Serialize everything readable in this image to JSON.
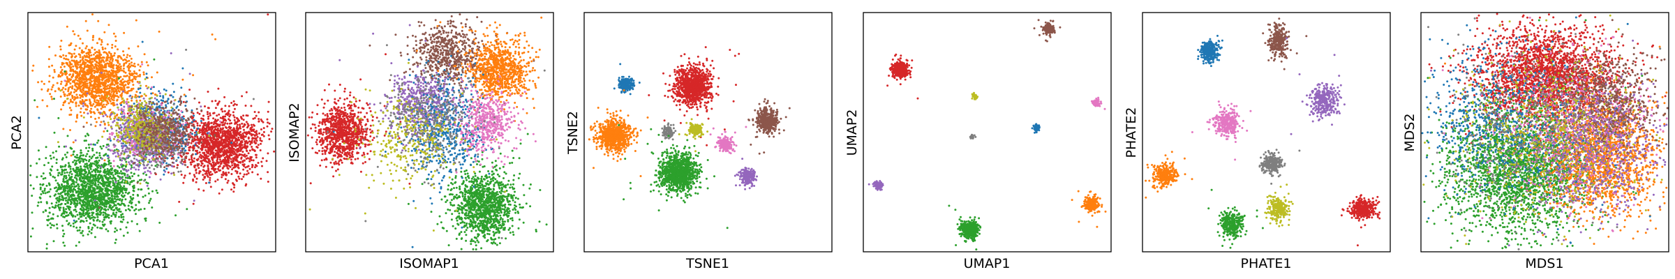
{
  "figure": {
    "palette": {
      "blue": "#1f77b4",
      "orange": "#ff7f0e",
      "green": "#2ca02c",
      "red": "#d62728",
      "purple": "#9467bd",
      "brown": "#8c564b",
      "pink": "#e377c2",
      "gray": "#7f7f7f",
      "olive": "#bcbd22"
    },
    "panel_xlabels": [
      "PCA1",
      "ISOMAP1",
      "TSNE1",
      "UMAP1",
      "PHATE1",
      "MDS1"
    ],
    "panel_ylabels": [
      "PCA2",
      "ISOMAP2",
      "TSNE2",
      "UMAP2",
      "PHATE2",
      "MDS2"
    ]
  },
  "chart_data": [
    {
      "type": "scatter",
      "xlabel": "PCA1",
      "ylabel": "PCA2",
      "xlim": [
        0,
        100
      ],
      "ylim": [
        0,
        100
      ],
      "grid": false,
      "clusters": [
        {
          "color": "orange",
          "center": [
            28,
            72
          ],
          "spread": [
            8,
            7
          ],
          "points": 1400
        },
        {
          "color": "green",
          "center": [
            26,
            26
          ],
          "spread": [
            9,
            8
          ],
          "points": 1600
        },
        {
          "color": "red",
          "center": [
            78,
            45
          ],
          "spread": [
            8,
            7
          ],
          "points": 1400
        },
        {
          "color": "blue",
          "center": [
            52,
            52
          ],
          "spread": [
            7,
            7
          ],
          "points": 500
        },
        {
          "color": "purple",
          "center": [
            47,
            46
          ],
          "spread": [
            7,
            7
          ],
          "points": 500
        },
        {
          "color": "pink",
          "center": [
            48,
            50
          ],
          "spread": [
            6,
            6
          ],
          "points": 350
        },
        {
          "color": "gray",
          "center": [
            50,
            47
          ],
          "spread": [
            6,
            6
          ],
          "points": 350
        },
        {
          "color": "olive",
          "center": [
            46,
            52
          ],
          "spread": [
            6,
            6
          ],
          "points": 350
        },
        {
          "color": "brown",
          "center": [
            55,
            50
          ],
          "spread": [
            6,
            6
          ],
          "points": 400
        }
      ]
    },
    {
      "type": "scatter",
      "xlabel": "ISOMAP1",
      "ylabel": "ISOMAP2",
      "xlim": [
        0,
        100
      ],
      "ylim": [
        0,
        100
      ],
      "grid": false,
      "clusters": [
        {
          "color": "red",
          "center": [
            15,
            50
          ],
          "spread": [
            5,
            6
          ],
          "points": 900
        },
        {
          "color": "brown",
          "center": [
            57,
            83
          ],
          "spread": [
            7,
            6
          ],
          "points": 600
        },
        {
          "color": "orange",
          "center": [
            78,
            76
          ],
          "spread": [
            6,
            6
          ],
          "points": 900
        },
        {
          "color": "green",
          "center": [
            72,
            19
          ],
          "spread": [
            6,
            7
          ],
          "points": 1200
        },
        {
          "color": "purple",
          "center": [
            47,
            62
          ],
          "spread": [
            7,
            7
          ],
          "points": 500
        },
        {
          "color": "blue",
          "center": [
            57,
            50
          ],
          "spread": [
            8,
            10
          ],
          "points": 500
        },
        {
          "color": "pink",
          "center": [
            73,
            54
          ],
          "spread": [
            5,
            6
          ],
          "points": 500
        },
        {
          "color": "gray",
          "center": [
            50,
            55
          ],
          "spread": [
            9,
            9
          ],
          "points": 400
        },
        {
          "color": "olive",
          "center": [
            42,
            46
          ],
          "spread": [
            10,
            10
          ],
          "points": 300
        }
      ]
    },
    {
      "type": "scatter",
      "xlabel": "TSNE1",
      "ylabel": "TSNE2",
      "xlim": [
        0,
        100
      ],
      "ylim": [
        0,
        100
      ],
      "grid": false,
      "clusters": [
        {
          "color": "blue",
          "center": [
            17,
            70
          ],
          "spread": [
            1.3,
            1.4
          ],
          "points": 220
        },
        {
          "color": "red",
          "center": [
            44,
            69
          ],
          "spread": [
            3.5,
            3.8
          ],
          "points": 1000
        },
        {
          "color": "orange",
          "center": [
            12,
            49
          ],
          "spread": [
            3.2,
            3.4
          ],
          "points": 800
        },
        {
          "color": "brown",
          "center": [
            74,
            55
          ],
          "spread": [
            2.2,
            2.4
          ],
          "points": 400
        },
        {
          "color": "gray",
          "center": [
            34,
            50
          ],
          "spread": [
            1.1,
            1.3
          ],
          "points": 120
        },
        {
          "color": "olive",
          "center": [
            45,
            51
          ],
          "spread": [
            1.3,
            1.4
          ],
          "points": 150
        },
        {
          "color": "pink",
          "center": [
            57,
            45
          ],
          "spread": [
            1.6,
            1.4
          ],
          "points": 200
        },
        {
          "color": "green",
          "center": [
            38,
            33
          ],
          "spread": [
            3.8,
            3.8
          ],
          "points": 1000
        },
        {
          "color": "purple",
          "center": [
            66,
            31
          ],
          "spread": [
            1.6,
            1.6
          ],
          "points": 220
        }
      ]
    },
    {
      "type": "scatter",
      "xlabel": "UMAP1",
      "ylabel": "UMAP2",
      "xlim": [
        0,
        100
      ],
      "ylim": [
        0,
        100
      ],
      "grid": false,
      "clusters": [
        {
          "color": "brown",
          "center": [
            75,
            93
          ],
          "spread": [
            1.0,
            1.1
          ],
          "points": 160
        },
        {
          "color": "red",
          "center": [
            15,
            76
          ],
          "spread": [
            1.6,
            1.7
          ],
          "points": 400
        },
        {
          "color": "olive",
          "center": [
            45,
            65
          ],
          "spread": [
            0.5,
            0.6
          ],
          "points": 50
        },
        {
          "color": "pink",
          "center": [
            94,
            62
          ],
          "spread": [
            0.7,
            0.7
          ],
          "points": 80
        },
        {
          "color": "blue",
          "center": [
            70,
            52
          ],
          "spread": [
            0.6,
            0.7
          ],
          "points": 70
        },
        {
          "color": "gray",
          "center": [
            44,
            48
          ],
          "spread": [
            0.4,
            0.4
          ],
          "points": 40
        },
        {
          "color": "purple",
          "center": [
            6,
            28
          ],
          "spread": [
            0.8,
            0.9
          ],
          "points": 80
        },
        {
          "color": "orange",
          "center": [
            92,
            20
          ],
          "spread": [
            1.3,
            1.5
          ],
          "points": 250
        },
        {
          "color": "green",
          "center": [
            43,
            9
          ],
          "spread": [
            1.7,
            1.8
          ],
          "points": 450
        }
      ]
    },
    {
      "type": "scatter",
      "xlabel": "PHATE1",
      "ylabel": "PHATE2",
      "xlim": [
        0,
        100
      ],
      "ylim": [
        0,
        100
      ],
      "grid": false,
      "clusters": [
        {
          "color": "blue",
          "center": [
            27,
            84
          ],
          "spread": [
            1.8,
            2.2
          ],
          "points": 320
        },
        {
          "color": "brown",
          "center": [
            55,
            88
          ],
          "spread": [
            1.8,
            3
          ],
          "points": 320
        },
        {
          "color": "purple",
          "center": [
            73,
            63
          ],
          "spread": [
            3,
            3.5
          ],
          "points": 320
        },
        {
          "color": "pink",
          "center": [
            34,
            54
          ],
          "spread": [
            2.5,
            2.6
          ],
          "points": 320
        },
        {
          "color": "gray",
          "center": [
            52,
            37
          ],
          "spread": [
            2,
            2
          ],
          "points": 260
        },
        {
          "color": "orange",
          "center": [
            9,
            32
          ],
          "spread": [
            2.4,
            2.4
          ],
          "points": 320
        },
        {
          "color": "olive",
          "center": [
            55,
            18
          ],
          "spread": [
            2,
            2.5
          ],
          "points": 260
        },
        {
          "color": "green",
          "center": [
            36,
            12
          ],
          "spread": [
            2.4,
            2.8
          ],
          "points": 320
        },
        {
          "color": "red",
          "center": [
            89,
            18
          ],
          "spread": [
            2.6,
            2.3
          ],
          "points": 320
        }
      ]
    },
    {
      "type": "scatter",
      "xlabel": "MDS1",
      "ylabel": "MDS2",
      "xlim": [
        0,
        100
      ],
      "ylim": [
        0,
        100
      ],
      "grid": false,
      "clusters": [
        {
          "color": "red",
          "center": [
            50,
            73
          ],
          "spread": [
            14,
            10
          ],
          "points": 2400
        },
        {
          "color": "green",
          "center": [
            40,
            34
          ],
          "spread": [
            14,
            13
          ],
          "points": 2400
        },
        {
          "color": "orange",
          "center": [
            73,
            40
          ],
          "spread": [
            11,
            12
          ],
          "points": 1600
        },
        {
          "color": "brown",
          "center": [
            75,
            62
          ],
          "spread": [
            10,
            10
          ],
          "points": 800
        },
        {
          "color": "purple",
          "center": [
            70,
            42
          ],
          "spread": [
            13,
            14
          ],
          "points": 700
        },
        {
          "color": "blue",
          "center": [
            30,
            56
          ],
          "spread": [
            15,
            16
          ],
          "points": 700
        },
        {
          "color": "pink",
          "center": [
            60,
            50
          ],
          "spread": [
            17,
            17
          ],
          "points": 500
        },
        {
          "color": "gray",
          "center": [
            45,
            50
          ],
          "spread": [
            17,
            17
          ],
          "points": 500
        },
        {
          "color": "olive",
          "center": [
            50,
            50
          ],
          "spread": [
            18,
            18
          ],
          "points": 500
        }
      ]
    }
  ]
}
